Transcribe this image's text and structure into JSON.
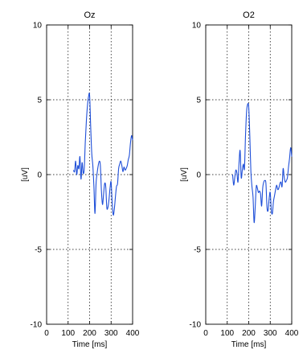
{
  "chart_data": [
    {
      "type": "line",
      "title": "Oz",
      "xlabel": "Time [ms]",
      "ylabel": "[uV]",
      "xlim": [
        0,
        400
      ],
      "ylim": [
        -10,
        10
      ],
      "xticks": [
        0,
        100,
        200,
        300,
        400
      ],
      "yticks": [
        -10,
        -5,
        0,
        5,
        10
      ],
      "xtick_labels": [
        "0",
        "100",
        "200",
        "300",
        "400"
      ],
      "ytick_labels": [
        "-10",
        "-5",
        "0",
        "5",
        "10"
      ],
      "grid": "dotted",
      "line_color": "#1f4fd8",
      "series": [
        {
          "x": [
            125,
            130,
            135,
            140,
            145,
            150,
            155,
            160,
            165,
            170,
            175,
            180,
            185,
            190,
            195,
            200,
            205,
            210,
            215,
            220,
            225,
            230,
            235,
            240,
            245,
            250,
            255,
            260,
            265,
            270,
            275,
            280,
            285,
            290,
            295,
            300,
            305,
            310,
            315,
            320,
            325,
            330,
            335,
            340,
            345,
            350,
            355,
            360,
            365,
            370,
            375,
            380,
            385,
            390,
            395,
            400
          ],
          "y": [
            0.3,
            0.2,
            0.9,
            0.0,
            0.6,
            0.4,
            1.2,
            -0.3,
            0.8,
            0.1,
            0.4,
            2.2,
            3.6,
            4.6,
            5.2,
            5.3,
            3.2,
            1.4,
            0.6,
            -0.8,
            -2.6,
            -0.6,
            0.1,
            0.6,
            0.9,
            0.6,
            -1.1,
            -2.0,
            -1.3,
            -0.6,
            -0.8,
            -2.2,
            -2.2,
            -1.7,
            -0.9,
            -0.5,
            -1.9,
            -2.7,
            -2.3,
            -1.5,
            -0.8,
            -0.6,
            0.4,
            0.7,
            0.9,
            0.6,
            0.2,
            0.5,
            0.3,
            0.4,
            0.6,
            1.0,
            1.3,
            2.1,
            2.6,
            2.3
          ]
        }
      ]
    },
    {
      "type": "line",
      "title": "O2",
      "xlabel": "Time [ms]",
      "ylabel": "[uV]",
      "xlim": [
        0,
        400
      ],
      "ylim": [
        -10,
        10
      ],
      "xticks": [
        0,
        100,
        200,
        300,
        400
      ],
      "yticks": [
        -10,
        -5,
        0,
        5,
        10
      ],
      "xtick_labels": [
        "0",
        "100",
        "200",
        "300",
        "400"
      ],
      "ytick_labels": [
        "-10",
        "-5",
        "0",
        "5",
        "10"
      ],
      "grid": "dotted",
      "line_color": "#1f4fd8",
      "series": [
        {
          "x": [
            125,
            130,
            135,
            140,
            145,
            150,
            155,
            160,
            165,
            170,
            175,
            180,
            185,
            190,
            195,
            200,
            205,
            210,
            215,
            220,
            225,
            230,
            235,
            240,
            245,
            250,
            255,
            260,
            265,
            270,
            275,
            280,
            285,
            290,
            295,
            300,
            305,
            310,
            315,
            320,
            325,
            330,
            335,
            340,
            345,
            350,
            355,
            360,
            365,
            370,
            375,
            380,
            385,
            390,
            395,
            400
          ],
          "y": [
            0.0,
            -0.7,
            -0.2,
            0.3,
            0.1,
            -0.5,
            0.8,
            1.6,
            -0.2,
            0.3,
            0.7,
            0.4,
            2.6,
            4.2,
            4.7,
            4.5,
            2.6,
            0.2,
            -0.8,
            -1.5,
            -3.2,
            -2.2,
            -0.8,
            -0.9,
            -1.2,
            -1.1,
            -1.3,
            -2.1,
            -0.9,
            -0.5,
            -0.4,
            -0.6,
            -2.2,
            -2.4,
            -1.6,
            -1.2,
            -2.4,
            -2.6,
            -1.8,
            -1.4,
            -1.0,
            -0.7,
            -1.0,
            -0.9,
            -0.6,
            -0.5,
            -0.8,
            0.4,
            -0.2,
            -0.5,
            -0.4,
            -0.2,
            0.5,
            1.1,
            1.8,
            1.2
          ]
        }
      ]
    }
  ]
}
